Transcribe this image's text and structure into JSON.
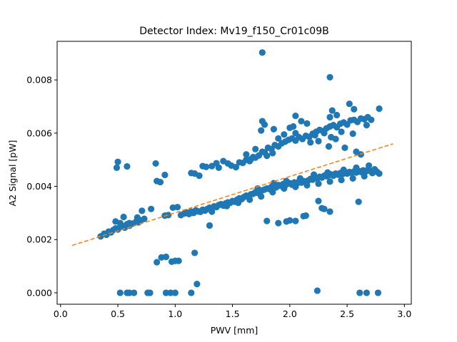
{
  "chart_data": {
    "type": "scatter",
    "title": "Detector Index: Mv19_f150_Cr01c09B",
    "xlabel": "PWV [mm]",
    "ylabel": "A2 Signal [pW]",
    "xlim": [
      -0.03,
      3.06
    ],
    "ylim": [
      -0.00043,
      0.00945
    ],
    "x_ticks": [
      0.0,
      0.5,
      1.0,
      1.5,
      2.0,
      2.5,
      3.0
    ],
    "x_tick_labels": [
      "0.0",
      "0.5",
      "1.0",
      "1.5",
      "2.0",
      "2.5",
      "3.0"
    ],
    "y_ticks": [
      0.0,
      0.002,
      0.004,
      0.006,
      0.008
    ],
    "y_tick_labels": [
      "0.000",
      "0.002",
      "0.004",
      "0.006",
      "0.008"
    ],
    "grid": false,
    "colors": {
      "points": "#1f77b4",
      "fit_line": "#ff7f0e"
    },
    "series": [
      {
        "name": "measurements",
        "kind": "scatter",
        "points": [
          [
            0.35,
            0.00212
          ],
          [
            0.38,
            0.00222
          ],
          [
            0.4,
            0.00218
          ],
          [
            0.42,
            0.0023
          ],
          [
            0.44,
            0.00227
          ],
          [
            0.46,
            0.00236
          ],
          [
            0.48,
            0.00242
          ],
          [
            0.5,
            0.00238
          ],
          [
            0.52,
            0.00248
          ],
          [
            0.54,
            0.00251
          ],
          [
            0.56,
            0.00245
          ],
          [
            0.58,
            0.00258
          ],
          [
            0.6,
            0.00252
          ],
          [
            0.63,
            0.0026
          ],
          [
            0.66,
            0.00268
          ],
          [
            0.68,
            0.00265
          ],
          [
            0.7,
            0.00272
          ],
          [
            0.73,
            0.00278
          ],
          [
            0.48,
            0.00268
          ],
          [
            0.52,
            0.00262
          ],
          [
            0.55,
            0.00285
          ],
          [
            0.6,
            0.00262
          ],
          [
            0.67,
            0.00283
          ],
          [
            0.71,
            0.00308
          ],
          [
            0.79,
            0.00315
          ],
          [
            0.91,
            0.0029
          ],
          [
            0.94,
            0.00292
          ],
          [
            0.98,
            0.0032
          ],
          [
            1.02,
            0.00322
          ],
          [
            1.05,
            0.00292
          ],
          [
            1.08,
            0.00298
          ],
          [
            1.1,
            0.00302
          ],
          [
            1.12,
            0.00296
          ],
          [
            1.14,
            0.00305
          ],
          [
            1.16,
            0.003
          ],
          [
            1.18,
            0.0031
          ],
          [
            1.2,
            0.00306
          ],
          [
            1.22,
            0.00304
          ],
          [
            1.24,
            0.00312
          ],
          [
            1.26,
            0.00309
          ],
          [
            1.28,
            0.00315
          ],
          [
            1.3,
            0.0032
          ],
          [
            1.32,
            0.00318
          ],
          [
            1.34,
            0.00325
          ],
          [
            1.36,
            0.00322
          ],
          [
            1.38,
            0.0033
          ],
          [
            1.4,
            0.00333
          ],
          [
            1.42,
            0.00328
          ],
          [
            1.44,
            0.00336
          ],
          [
            1.46,
            0.0034
          ],
          [
            1.48,
            0.00338
          ],
          [
            1.5,
            0.00345
          ],
          [
            1.52,
            0.00342
          ],
          [
            1.54,
            0.0035
          ],
          [
            1.56,
            0.00355
          ],
          [
            1.58,
            0.00352
          ],
          [
            1.6,
            0.0036
          ],
          [
            1.62,
            0.00365
          ],
          [
            1.64,
            0.00362
          ],
          [
            1.66,
            0.0037
          ],
          [
            1.68,
            0.00372
          ],
          [
            1.7,
            0.00378
          ],
          [
            1.72,
            0.00375
          ],
          [
            1.74,
            0.00382
          ],
          [
            1.76,
            0.00385
          ],
          [
            1.78,
            0.00388
          ],
          [
            1.8,
            0.00392
          ],
          [
            1.82,
            0.0039
          ],
          [
            1.84,
            0.00398
          ],
          [
            1.86,
            0.004
          ],
          [
            1.88,
            0.00396
          ],
          [
            1.9,
            0.00405
          ],
          [
            1.92,
            0.00402
          ],
          [
            1.94,
            0.00408
          ],
          [
            1.96,
            0.00404
          ],
          [
            1.98,
            0.0041
          ],
          [
            2.0,
            0.00412
          ],
          [
            2.02,
            0.00406
          ],
          [
            2.04,
            0.00415
          ],
          [
            2.06,
            0.0041
          ],
          [
            2.08,
            0.00418
          ],
          [
            2.1,
            0.00414
          ],
          [
            2.12,
            0.0042
          ],
          [
            2.14,
            0.00416
          ],
          [
            2.16,
            0.00422
          ],
          [
            2.18,
            0.00428
          ],
          [
            2.2,
            0.00425
          ],
          [
            2.22,
            0.00432
          ],
          [
            2.24,
            0.0043
          ],
          [
            2.26,
            0.00436
          ],
          [
            2.28,
            0.00433
          ],
          [
            2.3,
            0.0044
          ],
          [
            2.32,
            0.00438
          ],
          [
            2.34,
            0.00442
          ],
          [
            2.36,
            0.00445
          ],
          [
            2.38,
            0.0044
          ],
          [
            2.4,
            0.00448
          ],
          [
            2.42,
            0.00444
          ],
          [
            2.44,
            0.0045
          ],
          [
            2.46,
            0.00446
          ],
          [
            2.48,
            0.00452
          ],
          [
            2.5,
            0.00448
          ],
          [
            2.52,
            0.00454
          ],
          [
            2.54,
            0.0045
          ],
          [
            2.56,
            0.00456
          ],
          [
            2.58,
            0.00452
          ],
          [
            2.6,
            0.00458
          ],
          [
            2.62,
            0.00454
          ],
          [
            2.64,
            0.0046
          ],
          [
            2.66,
            0.00455
          ],
          [
            2.68,
            0.00462
          ],
          [
            2.7,
            0.00458
          ],
          [
            2.72,
            0.0045
          ],
          [
            2.74,
            0.00464
          ],
          [
            2.76,
            0.00455
          ],
          [
            2.78,
            0.00448
          ],
          [
            1.32,
            0.00305
          ],
          [
            1.45,
            0.00326
          ],
          [
            1.55,
            0.00338
          ],
          [
            1.65,
            0.0035
          ],
          [
            1.75,
            0.00362
          ],
          [
            1.85,
            0.00378
          ],
          [
            1.95,
            0.00392
          ],
          [
            2.05,
            0.00398
          ],
          [
            2.15,
            0.00404
          ],
          [
            2.25,
            0.0041
          ],
          [
            2.35,
            0.00418
          ],
          [
            2.45,
            0.00424
          ],
          [
            2.55,
            0.0043
          ],
          [
            2.65,
            0.00438
          ],
          [
            1.72,
            0.00392
          ],
          [
            1.86,
            0.00412
          ],
          [
            1.97,
            0.0042
          ],
          [
            2.09,
            0.0043
          ],
          [
            2.21,
            0.00444
          ],
          [
            2.33,
            0.00452
          ],
          [
            2.47,
            0.00462
          ],
          [
            2.58,
            0.0047
          ],
          [
            2.69,
            0.00478
          ],
          [
            0.49,
            0.0047
          ],
          [
            0.5,
            0.00492
          ],
          [
            0.58,
            0.00475
          ],
          [
            0.83,
            0.00486
          ],
          [
            0.84,
            0.0042
          ],
          [
            0.87,
            0.00416
          ],
          [
            0.91,
            0.00443
          ],
          [
            1.14,
            0.0045
          ],
          [
            1.17,
            0.00448
          ],
          [
            1.21,
            0.0044
          ],
          [
            1.24,
            0.00476
          ],
          [
            1.27,
            0.00473
          ],
          [
            1.32,
            0.00476
          ],
          [
            1.36,
            0.00487
          ],
          [
            1.38,
            0.0047
          ],
          [
            1.42,
            0.00495
          ],
          [
            1.46,
            0.00486
          ],
          [
            1.49,
            0.00478
          ],
          [
            1.53,
            0.00472
          ],
          [
            1.56,
            0.0049
          ],
          [
            1.59,
            0.00488
          ],
          [
            1.62,
            0.005
          ],
          [
            1.65,
            0.00495
          ],
          [
            1.68,
            0.0051
          ],
          [
            1.7,
            0.00508
          ],
          [
            1.73,
            0.00516
          ],
          [
            1.76,
            0.0053
          ],
          [
            1.78,
            0.00528
          ],
          [
            1.81,
            0.00545
          ],
          [
            1.84,
            0.0054
          ],
          [
            1.87,
            0.00555
          ],
          [
            1.9,
            0.0055
          ],
          [
            1.93,
            0.00562
          ],
          [
            1.96,
            0.00568
          ],
          [
            1.99,
            0.00575
          ],
          [
            2.02,
            0.0058
          ],
          [
            2.05,
            0.00572
          ],
          [
            2.08,
            0.00585
          ],
          [
            2.11,
            0.00578
          ],
          [
            2.14,
            0.0059
          ],
          [
            2.17,
            0.00586
          ],
          [
            2.2,
            0.00598
          ],
          [
            2.23,
            0.00605
          ],
          [
            2.26,
            0.00612
          ],
          [
            2.29,
            0.00608
          ],
          [
            2.32,
            0.00618
          ],
          [
            2.35,
            0.00625
          ],
          [
            2.38,
            0.0063
          ],
          [
            2.41,
            0.00622
          ],
          [
            2.44,
            0.00635
          ],
          [
            2.47,
            0.0064
          ],
          [
            2.5,
            0.00632
          ],
          [
            2.53,
            0.00648
          ],
          [
            2.56,
            0.0065
          ],
          [
            2.59,
            0.00642
          ],
          [
            2.62,
            0.00655
          ],
          [
            2.65,
            0.00652
          ],
          [
            2.68,
            0.0066
          ],
          [
            1.75,
            0.0061
          ],
          [
            1.78,
            0.00632
          ],
          [
            1.95,
            0.00595
          ],
          [
            2.0,
            0.0062
          ],
          [
            2.03,
            0.00625
          ],
          [
            2.1,
            0.00645
          ],
          [
            2.15,
            0.00636
          ],
          [
            2.22,
            0.00592
          ],
          [
            2.3,
            0.006
          ],
          [
            2.36,
            0.00585
          ],
          [
            2.4,
            0.00578
          ],
          [
            2.45,
            0.00605
          ],
          [
            2.55,
            0.00598
          ],
          [
            1.62,
            0.0052
          ],
          [
            1.66,
            0.00502
          ],
          [
            1.7,
            0.0054
          ],
          [
            1.8,
            0.00515
          ],
          [
            1.85,
            0.00525
          ],
          [
            1.9,
            0.0058
          ],
          [
            2.05,
            0.006
          ],
          [
            2.18,
            0.00565
          ],
          [
            2.25,
            0.0057
          ],
          [
            2.34,
            0.0055
          ],
          [
            2.48,
            0.00545
          ],
          [
            2.58,
            0.0053
          ],
          [
            2.62,
            0.0052
          ],
          [
            2.52,
            0.0071
          ],
          [
            2.56,
            0.0069
          ],
          [
            2.35,
            0.0066
          ],
          [
            2.37,
            0.00685
          ],
          [
            2.41,
            0.00668
          ],
          [
            2.05,
            0.00665
          ],
          [
            1.86,
            0.00615
          ],
          [
            1.76,
            0.00645
          ],
          [
            2.78,
            0.00692
          ],
          [
            2.67,
            0.0063
          ],
          [
            2.71,
            0.0065
          ],
          [
            1.76,
            0.00903
          ],
          [
            2.35,
            0.0081
          ],
          [
            0.84,
            0.00115
          ],
          [
            0.88,
            0.00133
          ],
          [
            0.92,
            0.00135
          ],
          [
            0.97,
            0.00117
          ],
          [
            1.0,
            0.0012
          ],
          [
            1.03,
            0.0012
          ],
          [
            1.17,
            0.0015
          ],
          [
            1.19,
            0.00033
          ],
          [
            1.3,
            0.00253
          ],
          [
            1.8,
            0.0027
          ],
          [
            1.9,
            0.00262
          ],
          [
            1.97,
            0.00268
          ],
          [
            2.0,
            0.00272
          ],
          [
            2.05,
            0.0027
          ],
          [
            2.12,
            0.00288
          ],
          [
            2.14,
            0.0029
          ],
          [
            2.28,
            0.00318
          ],
          [
            2.3,
            0.00315
          ],
          [
            2.35,
            0.00305
          ],
          [
            2.25,
            0.00345
          ],
          [
            2.6,
            0.00342
          ],
          [
            0.52,
            0.0
          ],
          [
            0.58,
            0.0
          ],
          [
            0.6,
            0.0
          ],
          [
            0.64,
            0.0
          ],
          [
            0.76,
            0.0
          ],
          [
            0.78,
            0.0
          ],
          [
            0.92,
            0.0
          ],
          [
            0.96,
            0.0
          ],
          [
            1.0,
            0.0
          ],
          [
            1.14,
            0.0
          ],
          [
            2.24,
            8e-05
          ],
          [
            2.61,
            0.0
          ],
          [
            2.67,
            0.0
          ],
          [
            2.77,
            0.0
          ]
        ]
      },
      {
        "name": "linear fit",
        "kind": "line",
        "style": "dashed",
        "x": [
          0.1,
          2.9
        ],
        "y": [
          0.00178,
          0.0056
        ]
      }
    ]
  }
}
